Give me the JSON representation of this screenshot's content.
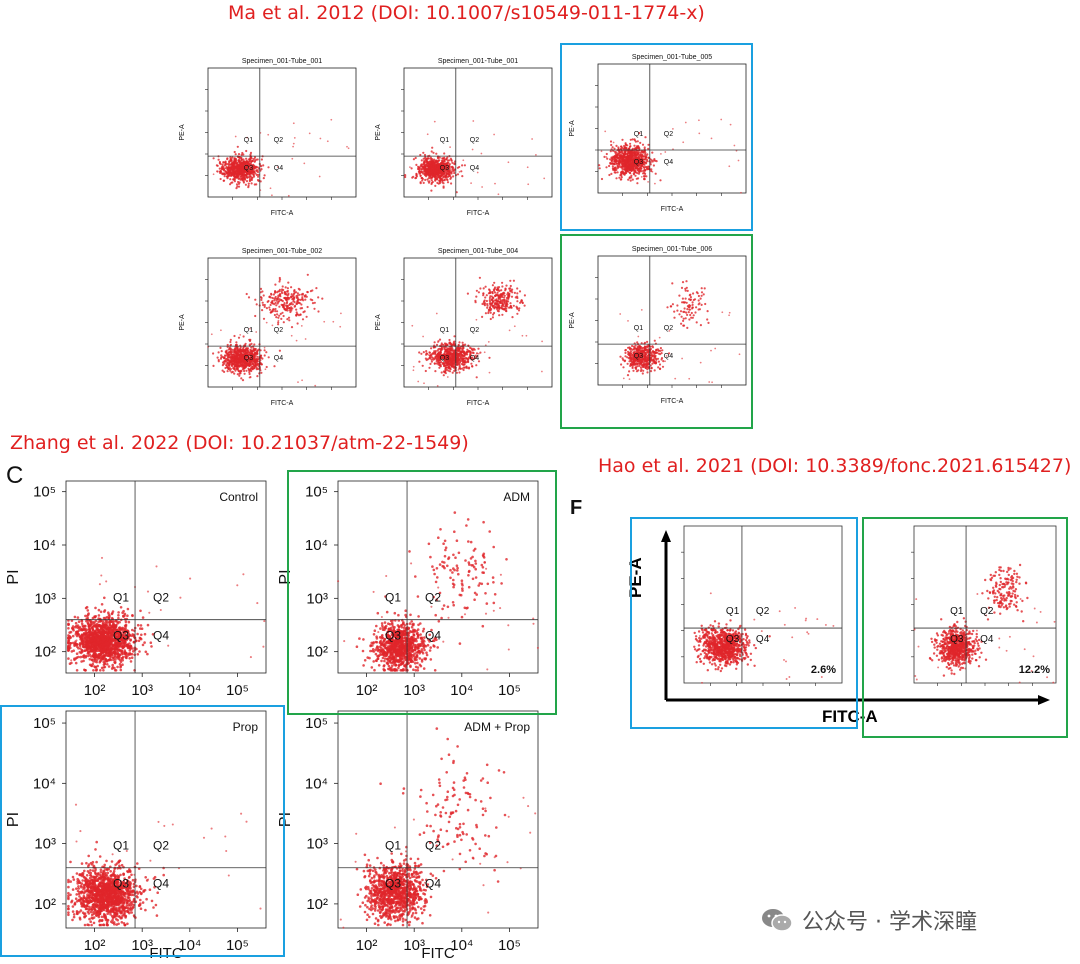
{
  "citations": {
    "ma": "Ma et al. 2012 (DOI: 10.1007/s10549-011-1774-x)",
    "zhang": "Zhang et al. 2022 (DOI: 10.21037/atm-22-1549)",
    "hao": "Hao et al. 2021 (DOI: 10.3389/fonc.2021.615427)"
  },
  "panel_letters": {
    "c": "C",
    "f": "F"
  },
  "watermark": {
    "text": "公众号 · 学术深瞳",
    "icon": "wechat-icon"
  },
  "highlight_colors": {
    "blue": "#1aa0e0",
    "green": "#22a54a"
  },
  "dot_color": "#e0262b",
  "chart_data": [
    {
      "id": "ma-1",
      "type": "scatter",
      "title": "Specimen_001-Tube_001",
      "xlabel": "FITC-A",
      "ylabel": "PE-A",
      "scale": "log",
      "xlim": [
        1,
        7
      ],
      "ylim": [
        1,
        7
      ],
      "gate": {
        "x": 3.1,
        "y": 2.9
      },
      "quadrants": [
        "Q1",
        "Q2",
        "Q3",
        "Q4"
      ],
      "clusters": [
        {
          "cx": 2.3,
          "cy": 2.3,
          "sx": 0.35,
          "sy": 0.28,
          "n": 700
        }
      ]
    },
    {
      "id": "ma-2",
      "type": "scatter",
      "title": "Specimen_001-Tube_001",
      "xlabel": "FITC-A",
      "ylabel": "PE-A",
      "scale": "log",
      "xlim": [
        1,
        7
      ],
      "ylim": [
        1,
        7
      ],
      "gate": {
        "x": 3.1,
        "y": 2.9
      },
      "quadrants": [
        "Q1",
        "Q2",
        "Q3",
        "Q4"
      ],
      "clusters": [
        {
          "cx": 2.3,
          "cy": 2.3,
          "sx": 0.35,
          "sy": 0.28,
          "n": 700
        }
      ]
    },
    {
      "id": "ma-3",
      "type": "scatter",
      "title": "Specimen_001-Tube_005",
      "xlabel": "FITC-A",
      "ylabel": "PE-A",
      "scale": "log",
      "xlim": [
        1,
        7
      ],
      "ylim": [
        1,
        7
      ],
      "gate": {
        "x": 3.1,
        "y": 3.0
      },
      "quadrants": [
        "Q1",
        "Q2",
        "Q3",
        "Q4"
      ],
      "clusters": [
        {
          "cx": 2.3,
          "cy": 2.5,
          "sx": 0.38,
          "sy": 0.35,
          "n": 800
        }
      ]
    },
    {
      "id": "ma-4",
      "type": "scatter",
      "title": "Specimen_001-Tube_002",
      "xlabel": "FITC-A",
      "ylabel": "PE-A",
      "scale": "log",
      "xlim": [
        1,
        7
      ],
      "ylim": [
        1,
        7
      ],
      "gate": {
        "x": 3.1,
        "y": 2.9
      },
      "quadrants": [
        "Q1",
        "Q2",
        "Q3",
        "Q4"
      ],
      "clusters": [
        {
          "cx": 2.4,
          "cy": 2.3,
          "sx": 0.4,
          "sy": 0.32,
          "n": 700
        },
        {
          "cx": 4.2,
          "cy": 5.0,
          "sx": 0.55,
          "sy": 0.4,
          "n": 250
        }
      ]
    },
    {
      "id": "ma-5",
      "type": "scatter",
      "title": "Specimen_001-Tube_004",
      "xlabel": "FITC-A",
      "ylabel": "PE-A",
      "scale": "log",
      "xlim": [
        1,
        7
      ],
      "ylim": [
        1,
        7
      ],
      "gate": {
        "x": 3.1,
        "y": 2.9
      },
      "quadrants": [
        "Q1",
        "Q2",
        "Q3",
        "Q4"
      ],
      "clusters": [
        {
          "cx": 2.9,
          "cy": 2.4,
          "sx": 0.42,
          "sy": 0.32,
          "n": 650
        },
        {
          "cx": 4.9,
          "cy": 5.0,
          "sx": 0.45,
          "sy": 0.35,
          "n": 260
        }
      ]
    },
    {
      "id": "ma-6",
      "type": "scatter",
      "title": "Specimen_001-Tube_006",
      "xlabel": "FITC-A",
      "ylabel": "PE-A",
      "scale": "log",
      "xlim": [
        1,
        7
      ],
      "ylim": [
        1,
        7
      ],
      "gate": {
        "x": 3.1,
        "y": 2.9
      },
      "quadrants": [
        "Q1",
        "Q2",
        "Q3",
        "Q4"
      ],
      "clusters": [
        {
          "cx": 2.8,
          "cy": 2.3,
          "sx": 0.35,
          "sy": 0.3,
          "n": 450
        },
        {
          "cx": 4.7,
          "cy": 4.6,
          "sx": 0.35,
          "sy": 0.5,
          "n": 90
        }
      ]
    },
    {
      "id": "zh-1",
      "type": "scatter",
      "title": "Control",
      "xlabel": "",
      "ylabel": "PI",
      "scale": "log",
      "xlim": [
        1.4,
        5.6
      ],
      "ylim": [
        1.6,
        5.2
      ],
      "xticks": [
        "10²",
        "10³",
        "10⁴",
        "10⁵"
      ],
      "yticks": [
        "10²",
        "10³",
        "10⁴",
        "10⁵"
      ],
      "gate": {
        "x": 2.85,
        "y": 2.6
      },
      "quadrants": [
        "Q1",
        "Q2",
        "Q3",
        "Q4"
      ],
      "clusters": [
        {
          "cx": 2.2,
          "cy": 2.2,
          "sx": 0.33,
          "sy": 0.22,
          "n": 1400
        }
      ]
    },
    {
      "id": "zh-2",
      "type": "scatter",
      "title": "ADM",
      "xlabel": "",
      "ylabel": "PI",
      "scale": "log",
      "xlim": [
        1.4,
        5.6
      ],
      "ylim": [
        1.6,
        5.2
      ],
      "xticks": [
        "10²",
        "10³",
        "10⁴",
        "10⁵"
      ],
      "yticks": [
        "10²",
        "10³",
        "10⁴",
        "10⁵"
      ],
      "gate": {
        "x": 2.85,
        "y": 2.6
      },
      "quadrants": [
        "Q1",
        "Q2",
        "Q3",
        "Q4"
      ],
      "clusters": [
        {
          "cx": 2.7,
          "cy": 2.1,
          "sx": 0.25,
          "sy": 0.22,
          "n": 900
        },
        {
          "cx": 3.9,
          "cy": 3.5,
          "sx": 0.4,
          "sy": 0.45,
          "n": 120
        }
      ]
    },
    {
      "id": "zh-3",
      "type": "scatter",
      "title": "Prop",
      "xlabel": "FITC",
      "ylabel": "PI",
      "scale": "log",
      "xlim": [
        1.4,
        5.6
      ],
      "ylim": [
        1.6,
        5.2
      ],
      "xticks": [
        "10²",
        "10³",
        "10⁴",
        "10⁵"
      ],
      "yticks": [
        "10²",
        "10³",
        "10⁴",
        "10⁵"
      ],
      "gate": {
        "x": 2.85,
        "y": 2.6
      },
      "quadrants": [
        "Q1",
        "Q2",
        "Q3",
        "Q4"
      ],
      "clusters": [
        {
          "cx": 2.25,
          "cy": 2.15,
          "sx": 0.33,
          "sy": 0.22,
          "n": 1300
        }
      ]
    },
    {
      "id": "zh-4",
      "type": "scatter",
      "title": "ADM + Prop",
      "xlabel": "FITC",
      "ylabel": "PI",
      "scale": "log",
      "xlim": [
        1.4,
        5.6
      ],
      "ylim": [
        1.6,
        5.2
      ],
      "xticks": [
        "10²",
        "10³",
        "10⁴",
        "10⁵"
      ],
      "yticks": [
        "10²",
        "10³",
        "10⁴",
        "10⁵"
      ],
      "gate": {
        "x": 2.85,
        "y": 2.6
      },
      "quadrants": [
        "Q1",
        "Q2",
        "Q3",
        "Q4"
      ],
      "clusters": [
        {
          "cx": 2.6,
          "cy": 2.2,
          "sx": 0.28,
          "sy": 0.22,
          "n": 1000
        },
        {
          "cx": 3.9,
          "cy": 3.5,
          "sx": 0.45,
          "sy": 0.5,
          "n": 120
        }
      ]
    },
    {
      "id": "hao-1",
      "type": "scatter",
      "title": "",
      "xlabel": "FITC-A",
      "ylabel": "PE-A",
      "scale": "log",
      "xlim": [
        1,
        7
      ],
      "ylim": [
        1,
        7
      ],
      "gate": {
        "x": 3.2,
        "y": 3.1
      },
      "quadrants": [
        "Q1",
        "Q2",
        "Q3",
        "Q4"
      ],
      "q4_percent": "2.6%",
      "clusters": [
        {
          "cx": 2.5,
          "cy": 2.4,
          "sx": 0.45,
          "sy": 0.35,
          "n": 800
        }
      ]
    },
    {
      "id": "hao-2",
      "type": "scatter",
      "title": "",
      "xlabel": "FITC-A",
      "ylabel": "PE-A",
      "scale": "log",
      "xlim": [
        1,
        7
      ],
      "ylim": [
        1,
        7
      ],
      "gate": {
        "x": 3.2,
        "y": 3.1
      },
      "quadrants": [
        "Q1",
        "Q2",
        "Q3",
        "Q4"
      ],
      "q4_percent": "12.2%",
      "clusters": [
        {
          "cx": 2.8,
          "cy": 2.4,
          "sx": 0.4,
          "sy": 0.35,
          "n": 650
        },
        {
          "cx": 4.8,
          "cy": 4.6,
          "sx": 0.35,
          "sy": 0.45,
          "n": 150
        }
      ]
    }
  ]
}
